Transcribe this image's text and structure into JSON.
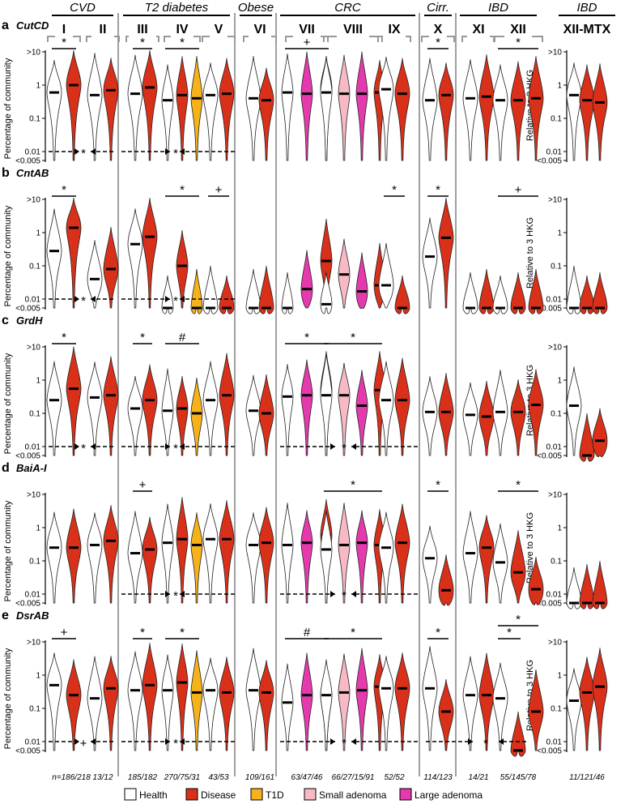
{
  "groups": [
    {
      "name": "CVD",
      "studies": [
        "I",
        "II"
      ]
    },
    {
      "name": "T2 diabetes",
      "studies": [
        "III",
        "IV",
        "V"
      ]
    },
    {
      "name": "Obese",
      "studies": [
        "VI"
      ]
    },
    {
      "name": "CRC",
      "studies": [
        "VII",
        "VIII",
        "IX"
      ]
    },
    {
      "name": "Cirr.",
      "studies": [
        "X"
      ]
    },
    {
      "name": "IBD",
      "studies": [
        "XI",
        "XII"
      ]
    },
    {
      "name": "IBD",
      "studies": [
        "XII-MTX"
      ]
    }
  ],
  "axis": {
    "ylabel": "Percentage of community",
    "ylabel_right": "Relative to 3 HKG",
    "ticks": [
      ">10",
      "1",
      "0.1",
      "0.01",
      "<0.005"
    ]
  },
  "sample_sizes": [
    "n=186/218",
    "13/12",
    "185/182",
    "270/75/31",
    "43/53",
    "109/161",
    "63/47/46",
    "66/27/15/91",
    "52/52",
    "114/123",
    "14/21",
    "55/145/78",
    "11/121/46"
  ],
  "legend": [
    {
      "label": "Health",
      "color": "#ffffff"
    },
    {
      "label": "Disease",
      "color": "#d9301a"
    },
    {
      "label": "T1D",
      "color": "#f5b21b"
    },
    {
      "label": "Small adenoma",
      "color": "#f7b9c4"
    },
    {
      "label": "Large adenoma",
      "color": "#e53aad"
    }
  ],
  "chart_data": {
    "type": "violin",
    "y_scale": "log10",
    "ylim": [
      0.005,
      10
    ],
    "panels": [
      {
        "letter": "a",
        "gene": "CutCD",
        "medians": [
          [
            0.6,
            1.0
          ],
          [
            0.5,
            0.7
          ],
          [
            0.55,
            0.85
          ],
          [
            0.35,
            0.5,
            0.4
          ],
          [
            0.5,
            0.55
          ],
          [
            0.4,
            0.35
          ],
          [
            0.6,
            0.55,
            0.8
          ],
          [
            0.6,
            0.55,
            0.55,
            0.6
          ],
          [
            0.75,
            0.55
          ],
          [
            0.35,
            0.5
          ],
          [
            0.4,
            0.45
          ],
          [
            0.35,
            0.35,
            0.4
          ],
          [
            0.5,
            0.35,
            0.3
          ]
        ],
        "significance": [
          {
            "symbol": "*",
            "studies": "I"
          },
          {
            "symbol": "*",
            "studies": "III"
          },
          {
            "symbol": "*",
            "studies": "IV"
          },
          {
            "symbol": "+",
            "studies": "VII"
          },
          {
            "symbol": "*",
            "studies": "X"
          },
          {
            "symbol": "*",
            "studies": "XII"
          }
        ],
        "pooled": [
          {
            "symbol": "*",
            "span": "CVD"
          },
          {
            "symbol": "*",
            "span": "T2 diabetes + Obese"
          }
        ]
      },
      {
        "letter": "b",
        "gene": "CntAB",
        "medians": [
          [
            0.28,
            1.4
          ],
          [
            0.04,
            0.08
          ],
          [
            0.45,
            0.75
          ],
          [
            0.005,
            0.1,
            0.005
          ],
          [
            0.005,
            0.005
          ],
          [
            0.005,
            0.005
          ],
          [
            0.005,
            0.02,
            0.14
          ],
          [
            0.007,
            0.055,
            0.017,
            0.026
          ],
          [
            0.026,
            0.005
          ],
          [
            0.19,
            0.7
          ],
          [
            0.005,
            0.005
          ],
          [
            0.005,
            0.005,
            0.005
          ],
          [
            0.005,
            0.005,
            0.005
          ]
        ],
        "significance": [
          {
            "symbol": "*",
            "studies": "I"
          },
          {
            "symbol": "*",
            "studies": "IV"
          },
          {
            "symbol": "+",
            "studies": "V"
          },
          {
            "symbol": "*",
            "studies": "IX"
          },
          {
            "symbol": "*",
            "studies": "X"
          },
          {
            "symbol": "+",
            "studies": "XII"
          }
        ],
        "pooled": [
          {
            "symbol": "*",
            "span": "CVD"
          },
          {
            "symbol": "*",
            "span": "T2 diabetes + Obese"
          }
        ]
      },
      {
        "letter": "c",
        "gene": "GrdH",
        "medians": [
          [
            0.25,
            0.55
          ],
          [
            0.3,
            0.35
          ],
          [
            0.14,
            0.25
          ],
          [
            0.12,
            0.14,
            0.1
          ],
          [
            0.25,
            0.35
          ],
          [
            0.12,
            0.1
          ],
          [
            0.32,
            0.35,
            0.5
          ],
          [
            0.35,
            0.35,
            0.17,
            0.5
          ],
          [
            0.25,
            0.25
          ],
          [
            0.11,
            0.11
          ],
          [
            0.09,
            0.08
          ],
          [
            0.11,
            0.11,
            0.18
          ],
          [
            0.17,
            0.005,
            0.015
          ]
        ],
        "significance": [
          {
            "symbol": "*",
            "studies": "I"
          },
          {
            "symbol": "*",
            "studies": "III"
          },
          {
            "symbol": "#",
            "studies": "IV"
          },
          {
            "symbol": "*",
            "studies": "VII"
          },
          {
            "symbol": "*",
            "studies": "VIII"
          }
        ],
        "pooled": [
          {
            "symbol": "*",
            "span": "CVD"
          },
          {
            "symbol": "*",
            "span": "T2 diabetes + Obese"
          },
          {
            "symbol": "*",
            "span": "CRC"
          }
        ]
      },
      {
        "letter": "d",
        "gene": "BaiA-I",
        "medians": [
          [
            0.25,
            0.25
          ],
          [
            0.3,
            0.4
          ],
          [
            0.17,
            0.22
          ],
          [
            0.35,
            0.45,
            0.3
          ],
          [
            0.45,
            0.45
          ],
          [
            0.3,
            0.35
          ],
          [
            0.3,
            0.35,
            0.6
          ],
          [
            0.22,
            0.3,
            0.35,
            0.3
          ],
          [
            0.25,
            0.35
          ],
          [
            0.12,
            0.013
          ],
          [
            0.17,
            0.25
          ],
          [
            0.09,
            0.045,
            0.014
          ],
          [
            0.005,
            0.005,
            0.005
          ]
        ],
        "significance": [
          {
            "symbol": "+",
            "studies": "III"
          },
          {
            "symbol": "*",
            "studies": "VIII"
          },
          {
            "symbol": "*",
            "studies": "X"
          },
          {
            "symbol": "*",
            "studies": "XII"
          }
        ],
        "pooled": [
          {
            "symbol": "*",
            "span": "T2 diabetes"
          },
          {
            "symbol": "*",
            "span": "CRC"
          }
        ]
      },
      {
        "letter": "e",
        "gene": "DsrAB",
        "medians": [
          [
            0.5,
            0.25
          ],
          [
            0.2,
            0.4
          ],
          [
            0.35,
            0.5
          ],
          [
            0.35,
            0.6,
            0.3
          ],
          [
            0.35,
            0.3
          ],
          [
            0.35,
            0.3
          ],
          [
            0.15,
            0.25,
            0.25
          ],
          [
            0.25,
            0.3,
            0.35,
            0.45
          ],
          [
            0.4,
            0.4
          ],
          [
            0.4,
            0.08
          ],
          [
            0.25,
            0.25
          ],
          [
            0.2,
            0.005,
            0.08
          ],
          [
            0.17,
            0.3,
            0.45
          ]
        ],
        "significance": [
          {
            "symbol": "+",
            "studies": "I"
          },
          {
            "symbol": "*",
            "studies": "III"
          },
          {
            "symbol": "*",
            "studies": "IV"
          },
          {
            "symbol": "#",
            "studies": "VII"
          },
          {
            "symbol": "*",
            "studies": "VIII"
          },
          {
            "symbol": "*",
            "studies": "X"
          },
          {
            "symbol": "*",
            "studies": "XII (health vs CD)"
          },
          {
            "symbol": "*",
            "studies": "XII (health vs UC)"
          }
        ],
        "pooled": [
          {
            "symbol": "+",
            "span": "CVD"
          },
          {
            "symbol": "*",
            "span": "T2 diabetes"
          },
          {
            "symbol": "*",
            "span": "CRC"
          },
          {
            "symbol": "*",
            "span": "IBD"
          }
        ]
      }
    ]
  }
}
